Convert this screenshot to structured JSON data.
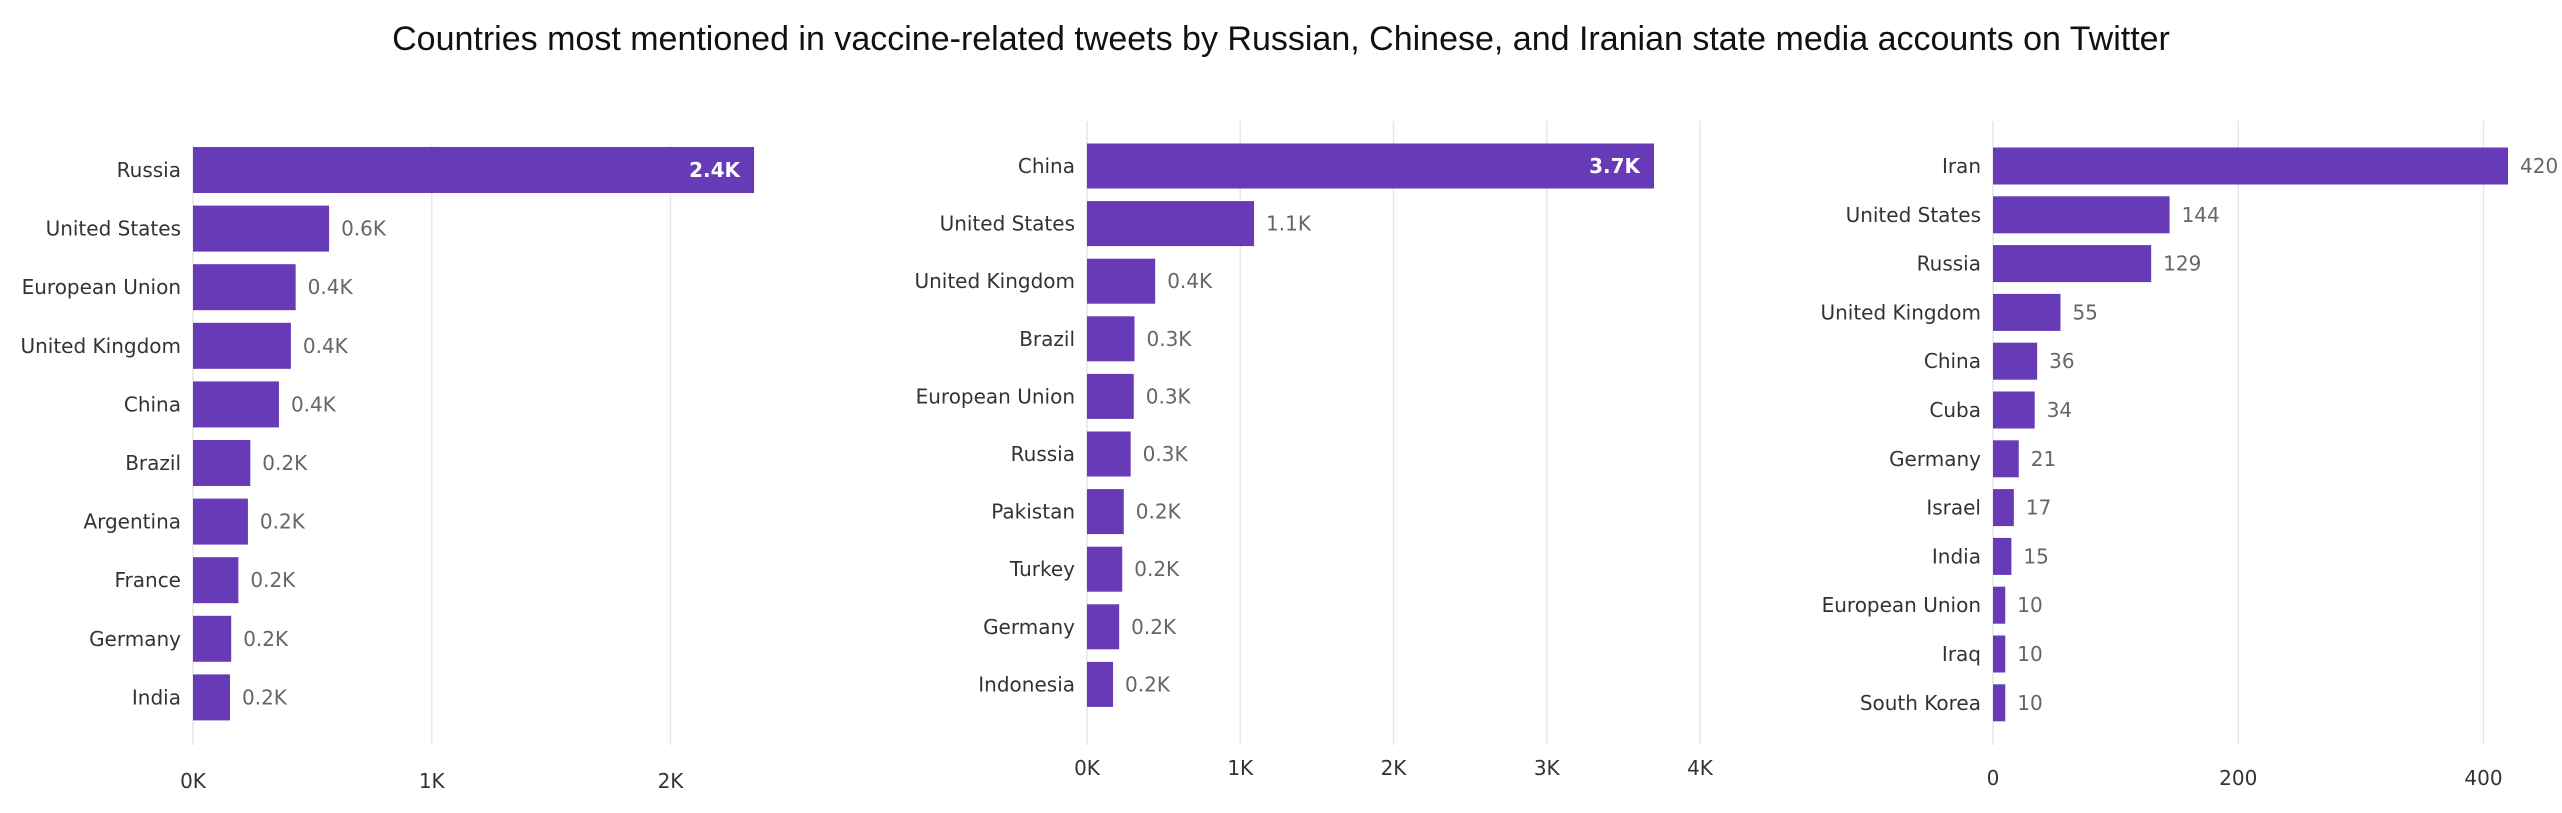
{
  "title": "Countries most mentioned in vaccine-related tweets by Russian, Chinese, and Iranian state media accounts on Twitter",
  "colors": {
    "bar": "#673AB7",
    "grid": "#e6e6e6"
  },
  "chart_data": [
    {
      "type": "bar",
      "orientation": "horizontal",
      "categories": [
        "Russia",
        "United States",
        "European Union",
        "United Kingdom",
        "China",
        "Brazil",
        "Argentina",
        "France",
        "Germany",
        "India"
      ],
      "values": [
        2350,
        570,
        430,
        410,
        360,
        240,
        230,
        190,
        160,
        155
      ],
      "data_labels": [
        "2.4K",
        "0.6K",
        "0.4K",
        "0.4K",
        "0.4K",
        "0.2K",
        "0.2K",
        "0.2K",
        "0.2K",
        "0.2K"
      ],
      "xlim": [
        0,
        2400
      ],
      "xticks": [
        0,
        1000,
        2000
      ],
      "xtick_labels": [
        "0K",
        "1K",
        "2K"
      ],
      "grid": true
    },
    {
      "type": "bar",
      "orientation": "horizontal",
      "categories": [
        "China",
        "United States",
        "United Kingdom",
        "Brazil",
        "European Union",
        "Russia",
        "Pakistan",
        "Turkey",
        "Germany",
        "Indonesia"
      ],
      "values": [
        3700,
        1090,
        445,
        310,
        305,
        285,
        240,
        230,
        210,
        170
      ],
      "data_labels": [
        "3.7K",
        "1.1K",
        "0.4K",
        "0.3K",
        "0.3K",
        "0.3K",
        "0.2K",
        "0.2K",
        "0.2K",
        "0.2K"
      ],
      "xlim": [
        0,
        4000
      ],
      "xticks": [
        0,
        1000,
        2000,
        3000,
        4000
      ],
      "xtick_labels": [
        "0K",
        "1K",
        "2K",
        "3K",
        "4K"
      ],
      "grid": true
    },
    {
      "type": "bar",
      "orientation": "horizontal",
      "categories": [
        "Iran",
        "United States",
        "Russia",
        "United Kingdom",
        "China",
        "Cuba",
        "Germany",
        "Israel",
        "India",
        "European Union",
        "Iraq",
        "South Korea"
      ],
      "values": [
        420,
        144,
        129,
        55,
        36,
        34,
        21,
        17,
        15,
        10,
        10,
        10
      ],
      "data_labels": [
        "420",
        "144",
        "129",
        "55",
        "36",
        "34",
        "21",
        "17",
        "15",
        "10",
        "10",
        "10"
      ],
      "xlim": [
        0,
        420
      ],
      "xticks": [
        0,
        200,
        400
      ],
      "xtick_labels": [
        "0",
        "200",
        "400"
      ],
      "grid": true
    }
  ]
}
